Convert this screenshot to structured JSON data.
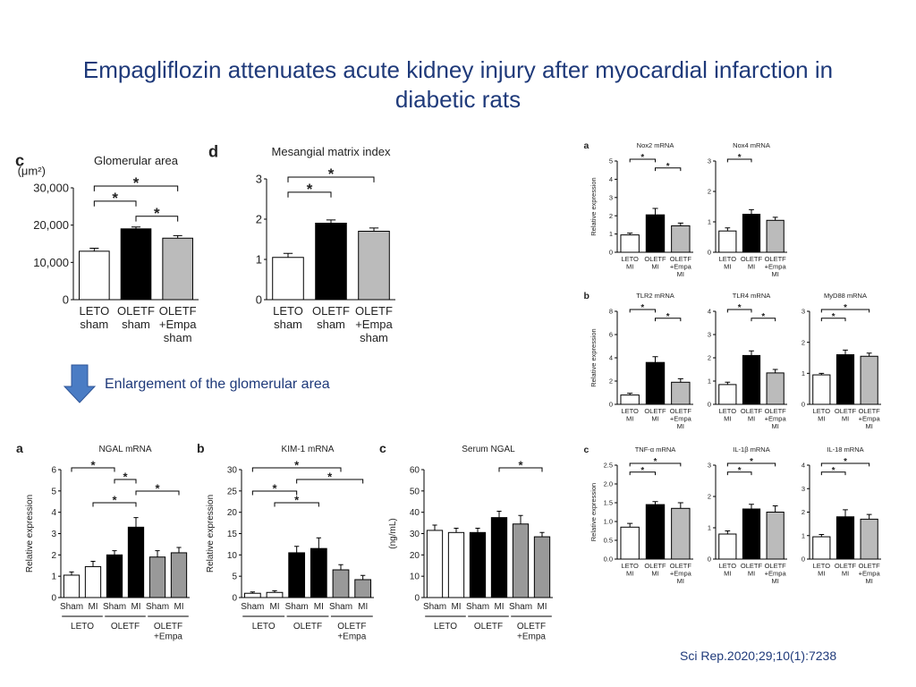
{
  "title": "Empagliflozin attenuates acute kidney injury after myocardial infarction in diabetic rats",
  "caption": "Enlargement of  the glomerular area",
  "citation": "Sci Rep.2020;29;10(1):7238",
  "chart_data": [
    {
      "type": "bar",
      "panel": "c",
      "title": "Glomerular area",
      "ylabel": "(μm²)",
      "categories": [
        "LETO\nsham",
        "OLETF\nsham",
        "OLETF\n+Empa\nsham"
      ],
      "values": [
        13000,
        19000,
        16500
      ],
      "errors": [
        800,
        500,
        700
      ],
      "colors": [
        "#ffffff",
        "#000000",
        "#bbbbbb"
      ],
      "ylim": [
        0,
        30000
      ],
      "yticks": [
        0,
        {
          "value": 10000,
          "label": "10,000"
        },
        {
          "value": 20000,
          "label": "20,000"
        },
        {
          "value": 30000,
          "label": "30,000"
        }
      ],
      "brackets": [
        {
          "from": 0,
          "to": 2,
          "label": "*"
        },
        {
          "from": 0,
          "to": 1,
          "label": "*"
        },
        {
          "from": 1,
          "to": 2,
          "label": "*"
        }
      ]
    },
    {
      "type": "bar",
      "panel": "d",
      "title": "Mesangial matrix index",
      "categories": [
        "LETO\nsham",
        "OLETF\nsham",
        "OLETF\n+Empa\nsham"
      ],
      "values": [
        1.05,
        1.9,
        1.7
      ],
      "errors": [
        0.1,
        0.08,
        0.08
      ],
      "colors": [
        "#ffffff",
        "#000000",
        "#bbbbbb"
      ],
      "ylim": [
        0,
        3
      ],
      "yticks": [
        0,
        1,
        2,
        3
      ],
      "brackets": [
        {
          "from": 0,
          "to": 2,
          "label": "*"
        },
        {
          "from": 0,
          "to": 1,
          "label": "*"
        }
      ]
    },
    {
      "type": "bar",
      "panel": "a",
      "title": "NGAL mRNA",
      "ylabel": "Relative expression",
      "categories": [
        "Sham",
        "MI",
        "Sham",
        "MI",
        "Sham",
        "MI"
      ],
      "groups": [
        {
          "label": "LETO",
          "from": 0,
          "to": 1
        },
        {
          "label": "OLETF",
          "from": 2,
          "to": 3
        },
        {
          "label": "OLETF\n+Empa",
          "from": 4,
          "to": 5
        }
      ],
      "values": [
        1.05,
        1.45,
        2.0,
        3.3,
        1.9,
        2.1
      ],
      "errors": [
        0.15,
        0.25,
        0.2,
        0.45,
        0.3,
        0.25
      ],
      "colors": [
        "#ffffff",
        "#ffffff",
        "#000000",
        "#000000",
        "#999999",
        "#999999"
      ],
      "ylim": [
        0,
        6
      ],
      "yticks": [
        0,
        1,
        2,
        3,
        4,
        5,
        6
      ],
      "brackets": [
        {
          "from": 0,
          "to": 2,
          "label": "*"
        },
        {
          "from": 2,
          "to": 3,
          "label": "*"
        },
        {
          "from": 3,
          "to": 5,
          "label": "*"
        },
        {
          "from": 1,
          "to": 3,
          "label": "*"
        }
      ]
    },
    {
      "type": "bar",
      "panel": "b",
      "title": "KIM-1 mRNA",
      "ylabel": "Relative expression",
      "categories": [
        "Sham",
        "MI",
        "Sham",
        "MI",
        "Sham",
        "MI"
      ],
      "groups": [
        {
          "label": "LETO",
          "from": 0,
          "to": 1
        },
        {
          "label": "OLETF",
          "from": 2,
          "to": 3
        },
        {
          "label": "OLETF\n+Empa",
          "from": 4,
          "to": 5
        }
      ],
      "values": [
        1.0,
        1.2,
        10.5,
        11.5,
        6.5,
        4.2
      ],
      "errors": [
        0.3,
        0.4,
        1.5,
        2.5,
        1.2,
        1.0
      ],
      "colors": [
        "#ffffff",
        "#ffffff",
        "#000000",
        "#000000",
        "#999999",
        "#999999"
      ],
      "ylim": [
        0,
        30
      ],
      "yticks": [
        0,
        5,
        10,
        15,
        20,
        25,
        30
      ],
      "brackets": [
        {
          "from": 0,
          "to": 4,
          "label": "*"
        },
        {
          "from": 2,
          "to": 5,
          "label": "*"
        },
        {
          "from": 0,
          "to": 2,
          "label": "*"
        },
        {
          "from": 1,
          "to": 3,
          "label": "*"
        }
      ]
    },
    {
      "type": "bar",
      "panel": "c",
      "title": "Serum NGAL",
      "ylabel": "(ng/mL)",
      "categories": [
        "Sham",
        "MI",
        "Sham",
        "MI",
        "Sham",
        "MI"
      ],
      "groups": [
        {
          "label": "LETO",
          "from": 0,
          "to": 1
        },
        {
          "label": "OLETF",
          "from": 2,
          "to": 3
        },
        {
          "label": "OLETF\n+Empa",
          "from": 4,
          "to": 5
        }
      ],
      "values": [
        31.5,
        30.5,
        30.5,
        37.5,
        34.5,
        28.5
      ],
      "errors": [
        2.5,
        2.0,
        2.0,
        3.0,
        4.0,
        2.0
      ],
      "colors": [
        "#ffffff",
        "#ffffff",
        "#000000",
        "#000000",
        "#999999",
        "#999999"
      ],
      "ylim": [
        0,
        60
      ],
      "yticks": [
        0,
        10,
        20,
        30,
        40,
        50,
        60
      ],
      "brackets": [
        {
          "from": 3,
          "to": 5,
          "label": "*"
        }
      ]
    },
    {
      "type": "bar",
      "panel": "a",
      "title": "Nox2 mRNA",
      "ylabel": "Relative expression",
      "categories": [
        "LETO\nMI",
        "OLETF\nMI",
        "OLETF\n+Empa\nMI"
      ],
      "values": [
        0.95,
        2.05,
        1.45
      ],
      "errors": [
        0.1,
        0.35,
        0.15
      ],
      "colors": [
        "#ffffff",
        "#000000",
        "#bbbbbb"
      ],
      "ylim": [
        0,
        5
      ],
      "yticks": [
        0,
        1,
        2,
        3,
        4,
        5
      ],
      "brackets": [
        {
          "from": 0,
          "to": 1,
          "label": "*"
        },
        {
          "from": 1,
          "to": 2,
          "label": "*"
        }
      ]
    },
    {
      "type": "bar",
      "title": "Nox4 mRNA",
      "categories": [
        "LETO\nMI",
        "OLETF\nMI",
        "OLETF\n+Empa\nMI"
      ],
      "values": [
        0.7,
        1.25,
        1.05
      ],
      "errors": [
        0.1,
        0.15,
        0.1
      ],
      "colors": [
        "#ffffff",
        "#000000",
        "#bbbbbb"
      ],
      "ylim": [
        0,
        3
      ],
      "yticks": [
        0,
        1,
        2,
        3
      ],
      "brackets": [
        {
          "from": 0,
          "to": 1,
          "label": "*"
        }
      ]
    },
    {
      "type": "bar",
      "panel": "b",
      "title": "TLR2 mRNA",
      "ylabel": "Relative expression",
      "categories": [
        "LETO\nMI",
        "OLETF\nMI",
        "OLETF\n+Empa\nMI"
      ],
      "values": [
        0.8,
        3.6,
        1.9
      ],
      "errors": [
        0.15,
        0.5,
        0.3
      ],
      "colors": [
        "#ffffff",
        "#000000",
        "#bbbbbb"
      ],
      "ylim": [
        0,
        8
      ],
      "yticks": [
        0,
        2,
        4,
        6,
        8
      ],
      "brackets": [
        {
          "from": 0,
          "to": 1,
          "label": "*"
        },
        {
          "from": 1,
          "to": 2,
          "label": "*"
        }
      ]
    },
    {
      "type": "bar",
      "title": "TLR4 mRNA",
      "categories": [
        "LETO\nMI",
        "OLETF\nMI",
        "OLETF\n+Empa\nMI"
      ],
      "values": [
        0.85,
        2.1,
        1.35
      ],
      "errors": [
        0.1,
        0.2,
        0.15
      ],
      "colors": [
        "#ffffff",
        "#000000",
        "#bbbbbb"
      ],
      "ylim": [
        0,
        4
      ],
      "yticks": [
        0,
        1,
        2,
        3,
        4
      ],
      "brackets": [
        {
          "from": 0,
          "to": 1,
          "label": "*"
        },
        {
          "from": 1,
          "to": 2,
          "label": "*"
        }
      ]
    },
    {
      "type": "bar",
      "title": "MyD88 mRNA",
      "categories": [
        "LETO\nMI",
        "OLETF\nMI",
        "OLETF\n+Empa\nMI"
      ],
      "values": [
        0.95,
        1.6,
        1.55
      ],
      "errors": [
        0.05,
        0.15,
        0.1
      ],
      "colors": [
        "#ffffff",
        "#000000",
        "#bbbbbb"
      ],
      "ylim": [
        0,
        3
      ],
      "yticks": [
        0,
        1,
        2,
        3
      ],
      "brackets": [
        {
          "from": 0,
          "to": 2,
          "label": "*"
        },
        {
          "from": 0,
          "to": 1,
          "label": "*"
        }
      ]
    },
    {
      "type": "bar",
      "panel": "c",
      "title": "TNF-α mRNA",
      "ylabel": "Relative expression",
      "categories": [
        "LETO\nMI",
        "OLETF\nMI",
        "OLETF\n+Empa\nMI"
      ],
      "values": [
        0.85,
        1.45,
        1.35
      ],
      "errors": [
        0.1,
        0.08,
        0.15
      ],
      "colors": [
        "#ffffff",
        "#000000",
        "#bbbbbb"
      ],
      "ylim": [
        0,
        2.5
      ],
      "yticks": [
        {
          "value": 0,
          "label": "0.0"
        },
        0.5,
        {
          "value": 1,
          "label": "1.0"
        },
        1.5,
        {
          "value": 2,
          "label": "2.0"
        },
        2.5
      ],
      "brackets": [
        {
          "from": 0,
          "to": 2,
          "label": "*"
        },
        {
          "from": 0,
          "to": 1,
          "label": "*"
        }
      ]
    },
    {
      "type": "bar",
      "title": "IL-1β mRNA",
      "categories": [
        "LETO\nMI",
        "OLETF\nMI",
        "OLETF\n+Empa\nMI"
      ],
      "values": [
        0.8,
        1.6,
        1.5
      ],
      "errors": [
        0.1,
        0.15,
        0.2
      ],
      "colors": [
        "#ffffff",
        "#000000",
        "#bbbbbb"
      ],
      "ylim": [
        0,
        3
      ],
      "yticks": [
        0,
        1,
        2,
        3
      ],
      "brackets": [
        {
          "from": 0,
          "to": 2,
          "label": "*"
        },
        {
          "from": 0,
          "to": 1,
          "label": "*"
        }
      ]
    },
    {
      "type": "bar",
      "title": "IL-18 mRNA",
      "categories": [
        "LETO\nMI",
        "OLETF\nMI",
        "OLETF\n+Empa\nMI"
      ],
      "values": [
        0.95,
        1.8,
        1.7
      ],
      "errors": [
        0.1,
        0.3,
        0.2
      ],
      "colors": [
        "#ffffff",
        "#000000",
        "#bbbbbb"
      ],
      "ylim": [
        0,
        4
      ],
      "yticks": [
        0,
        1,
        2,
        3,
        4
      ],
      "brackets": [
        {
          "from": 0,
          "to": 2,
          "label": "*"
        },
        {
          "from": 0,
          "to": 1,
          "label": "*"
        }
      ]
    }
  ]
}
